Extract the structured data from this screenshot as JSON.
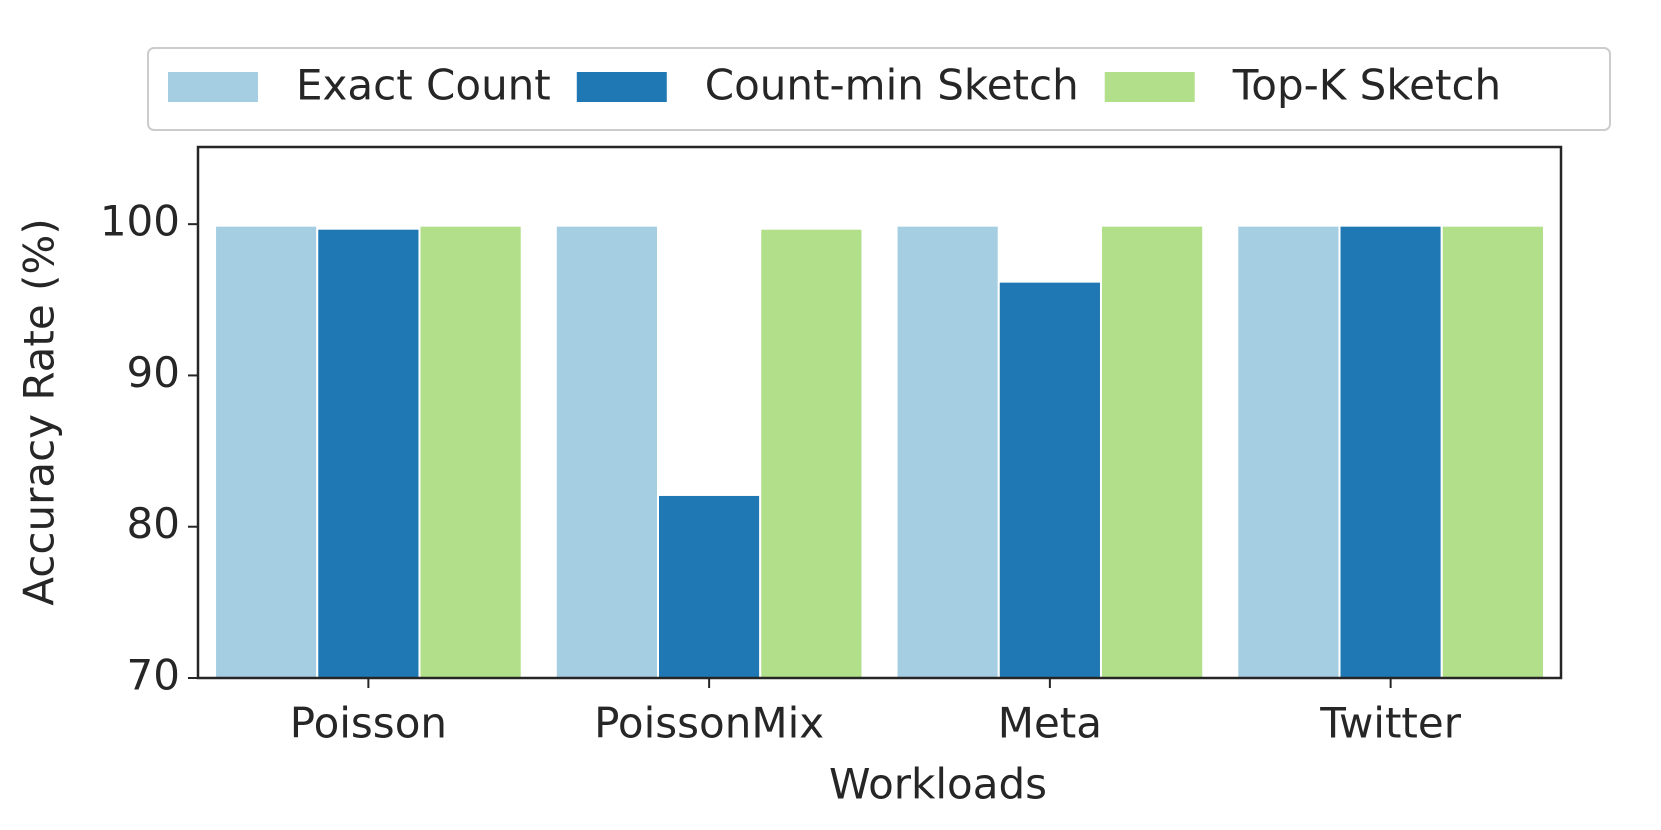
{
  "chart_data": {
    "type": "bar",
    "xlabel": "Workloads",
    "ylabel": "Accuracy Rate (%)",
    "categories": [
      "Poisson",
      "PoissonMix",
      "Meta",
      "Twitter"
    ],
    "series": [
      {
        "name": "Exact Count",
        "color": "#a6cee3",
        "values": [
          99.9,
          99.9,
          99.9,
          99.9
        ]
      },
      {
        "name": "Count-min Sketch",
        "color": "#1f78b4",
        "values": [
          99.7,
          82.1,
          96.2,
          99.9
        ]
      },
      {
        "name": "Top-K Sketch",
        "color": "#b2df8a",
        "values": [
          99.9,
          99.7,
          99.9,
          99.9
        ]
      }
    ],
    "ylim": [
      70,
      105.1
    ],
    "yticks": [
      70,
      80,
      90,
      100
    ],
    "grid": false,
    "legend": "top"
  }
}
